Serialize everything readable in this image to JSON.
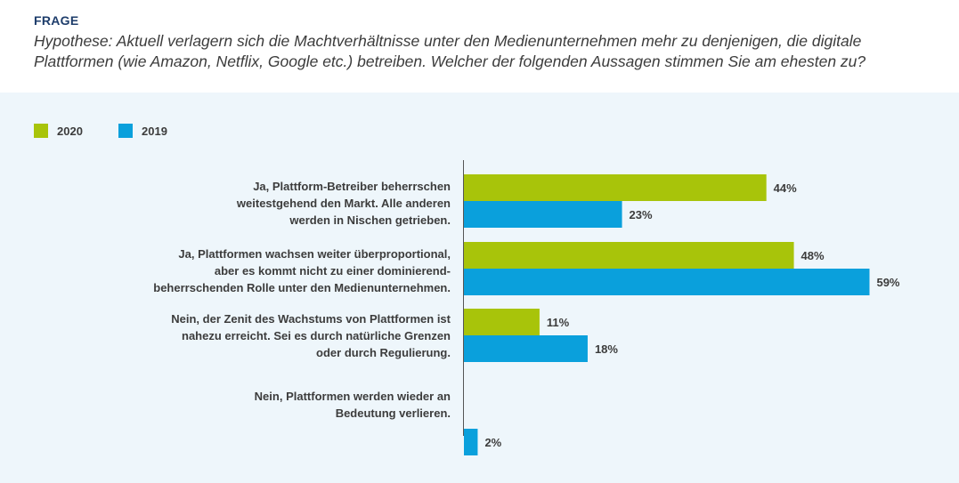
{
  "header": {
    "frage": "FRAGE",
    "question": "Hypothese: Aktuell verlagern sich die Machtverhältnisse unter den Medienunternehmen mehr zu denjenigen, die digitale Plattformen (wie Amazon, Netflix, Google etc.) betreiben. Welcher der folgenden Aussagen stimmen Sie am ehesten zu?"
  },
  "colors": {
    "series_2020": "#a8c40a",
    "series_2019": "#0aa0dc",
    "panel_bg": "#eef6fb"
  },
  "chart_data": {
    "type": "bar",
    "orientation": "horizontal",
    "categories": [
      "Ja, Plattform-Betreiber beherrschen\nweitestgehend den Markt. Alle anderen\nwerden in Nischen getrieben.",
      "Ja, Plattformen wachsen weiter überproportional,\naber es kommt nicht zu einer dominierend-\nbeherrschenden Rolle unter den Medienunternehmen.",
      "Nein, der Zenit des Wachstums von Plattformen ist\nnahezu erreicht. Sei es durch natürliche Grenzen\noder durch Regulierung.",
      "Nein, Plattformen werden wieder an\nBedeutung verlieren."
    ],
    "series": [
      {
        "name": "2020",
        "values": [
          44,
          48,
          11,
          null
        ],
        "labels": [
          "44%",
          "48%",
          "11%",
          ""
        ]
      },
      {
        "name": "2019",
        "values": [
          23,
          59,
          18,
          2
        ],
        "labels": [
          "23%",
          "59%",
          "18%",
          "2%"
        ]
      }
    ],
    "unit": "%",
    "xlim": [
      0,
      59
    ],
    "grid": false,
    "legend_position": "top-left"
  }
}
